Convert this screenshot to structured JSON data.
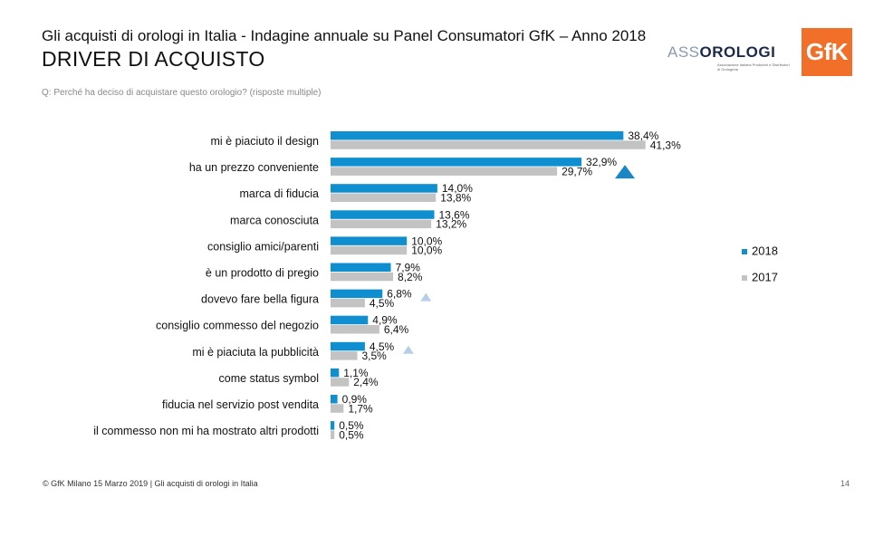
{
  "header": {
    "title": "Gli acquisti di orologi in Italia - Indagine annuale su Panel Consumatori GfK – Anno 2018",
    "heading": "DRIVER DI ACQUISTO",
    "question": "Q: Perché ha deciso di acquistare questo orologio? (risposte multiple)"
  },
  "logos": {
    "assorologi": "ASSOROLOGI",
    "assorologi_light": "ASS",
    "assorologi_dark": "OROLOGI",
    "assorologi_sub": "Associazione Italiana Produttori e Distributori di Orologeria",
    "gfk": "GfK"
  },
  "footer": {
    "text": "© GfK Milano 15 Marzo 2019 | Gli acquisti di orologi in Italia",
    "page": "14"
  },
  "colors": {
    "series_2018": "#0f8fcf",
    "series_2017": "#c3c3c3",
    "arrow_strong": "#1b86c6",
    "arrow_light": "#b7cde8"
  },
  "chart_data": {
    "type": "bar",
    "orientation": "horizontal",
    "categories": [
      "mi è piaciuto il design",
      "ha un prezzo conveniente",
      "marca di fiducia",
      "marca conosciuta",
      "consiglio amici/parenti",
      "è un prodotto di pregio",
      "dovevo fare bella figura",
      "consiglio commesso del negozio",
      "mi è piaciuta la pubblicità",
      "come status symbol",
      "fiducia nel servizio post vendita",
      "il commesso non mi ha mostrato altri prodotti"
    ],
    "series": [
      {
        "name": "2018",
        "values": [
          38.4,
          32.9,
          14.0,
          13.6,
          10.0,
          7.9,
          6.8,
          4.9,
          4.5,
          1.1,
          0.9,
          0.5
        ],
        "labels": [
          "38,4%",
          "32,9%",
          "14,0%",
          "13,6%",
          "10,0%",
          "7,9%",
          "6,8%",
          "4,9%",
          "4,5%",
          "1,1%",
          "0,9%",
          "0,5%"
        ]
      },
      {
        "name": "2017",
        "values": [
          41.3,
          29.7,
          13.8,
          13.2,
          10.0,
          8.2,
          4.5,
          6.4,
          3.5,
          2.4,
          1.7,
          0.5
        ],
        "labels": [
          "41,3%",
          "29,7%",
          "13,8%",
          "13,2%",
          "10,0%",
          "8,2%",
          "4,5%",
          "6,4%",
          "3,5%",
          "2,4%",
          "1,7%",
          "0,5%"
        ]
      }
    ],
    "significance_up": [
      {
        "category": "ha un prezzo conveniente",
        "level": "strong"
      },
      {
        "category": "dovevo fare bella figura",
        "level": "light"
      },
      {
        "category": "mi è piaciuta la pubblicità",
        "level": "light"
      }
    ],
    "xlim": [
      0,
      45
    ],
    "grid": false,
    "legend": "right"
  }
}
